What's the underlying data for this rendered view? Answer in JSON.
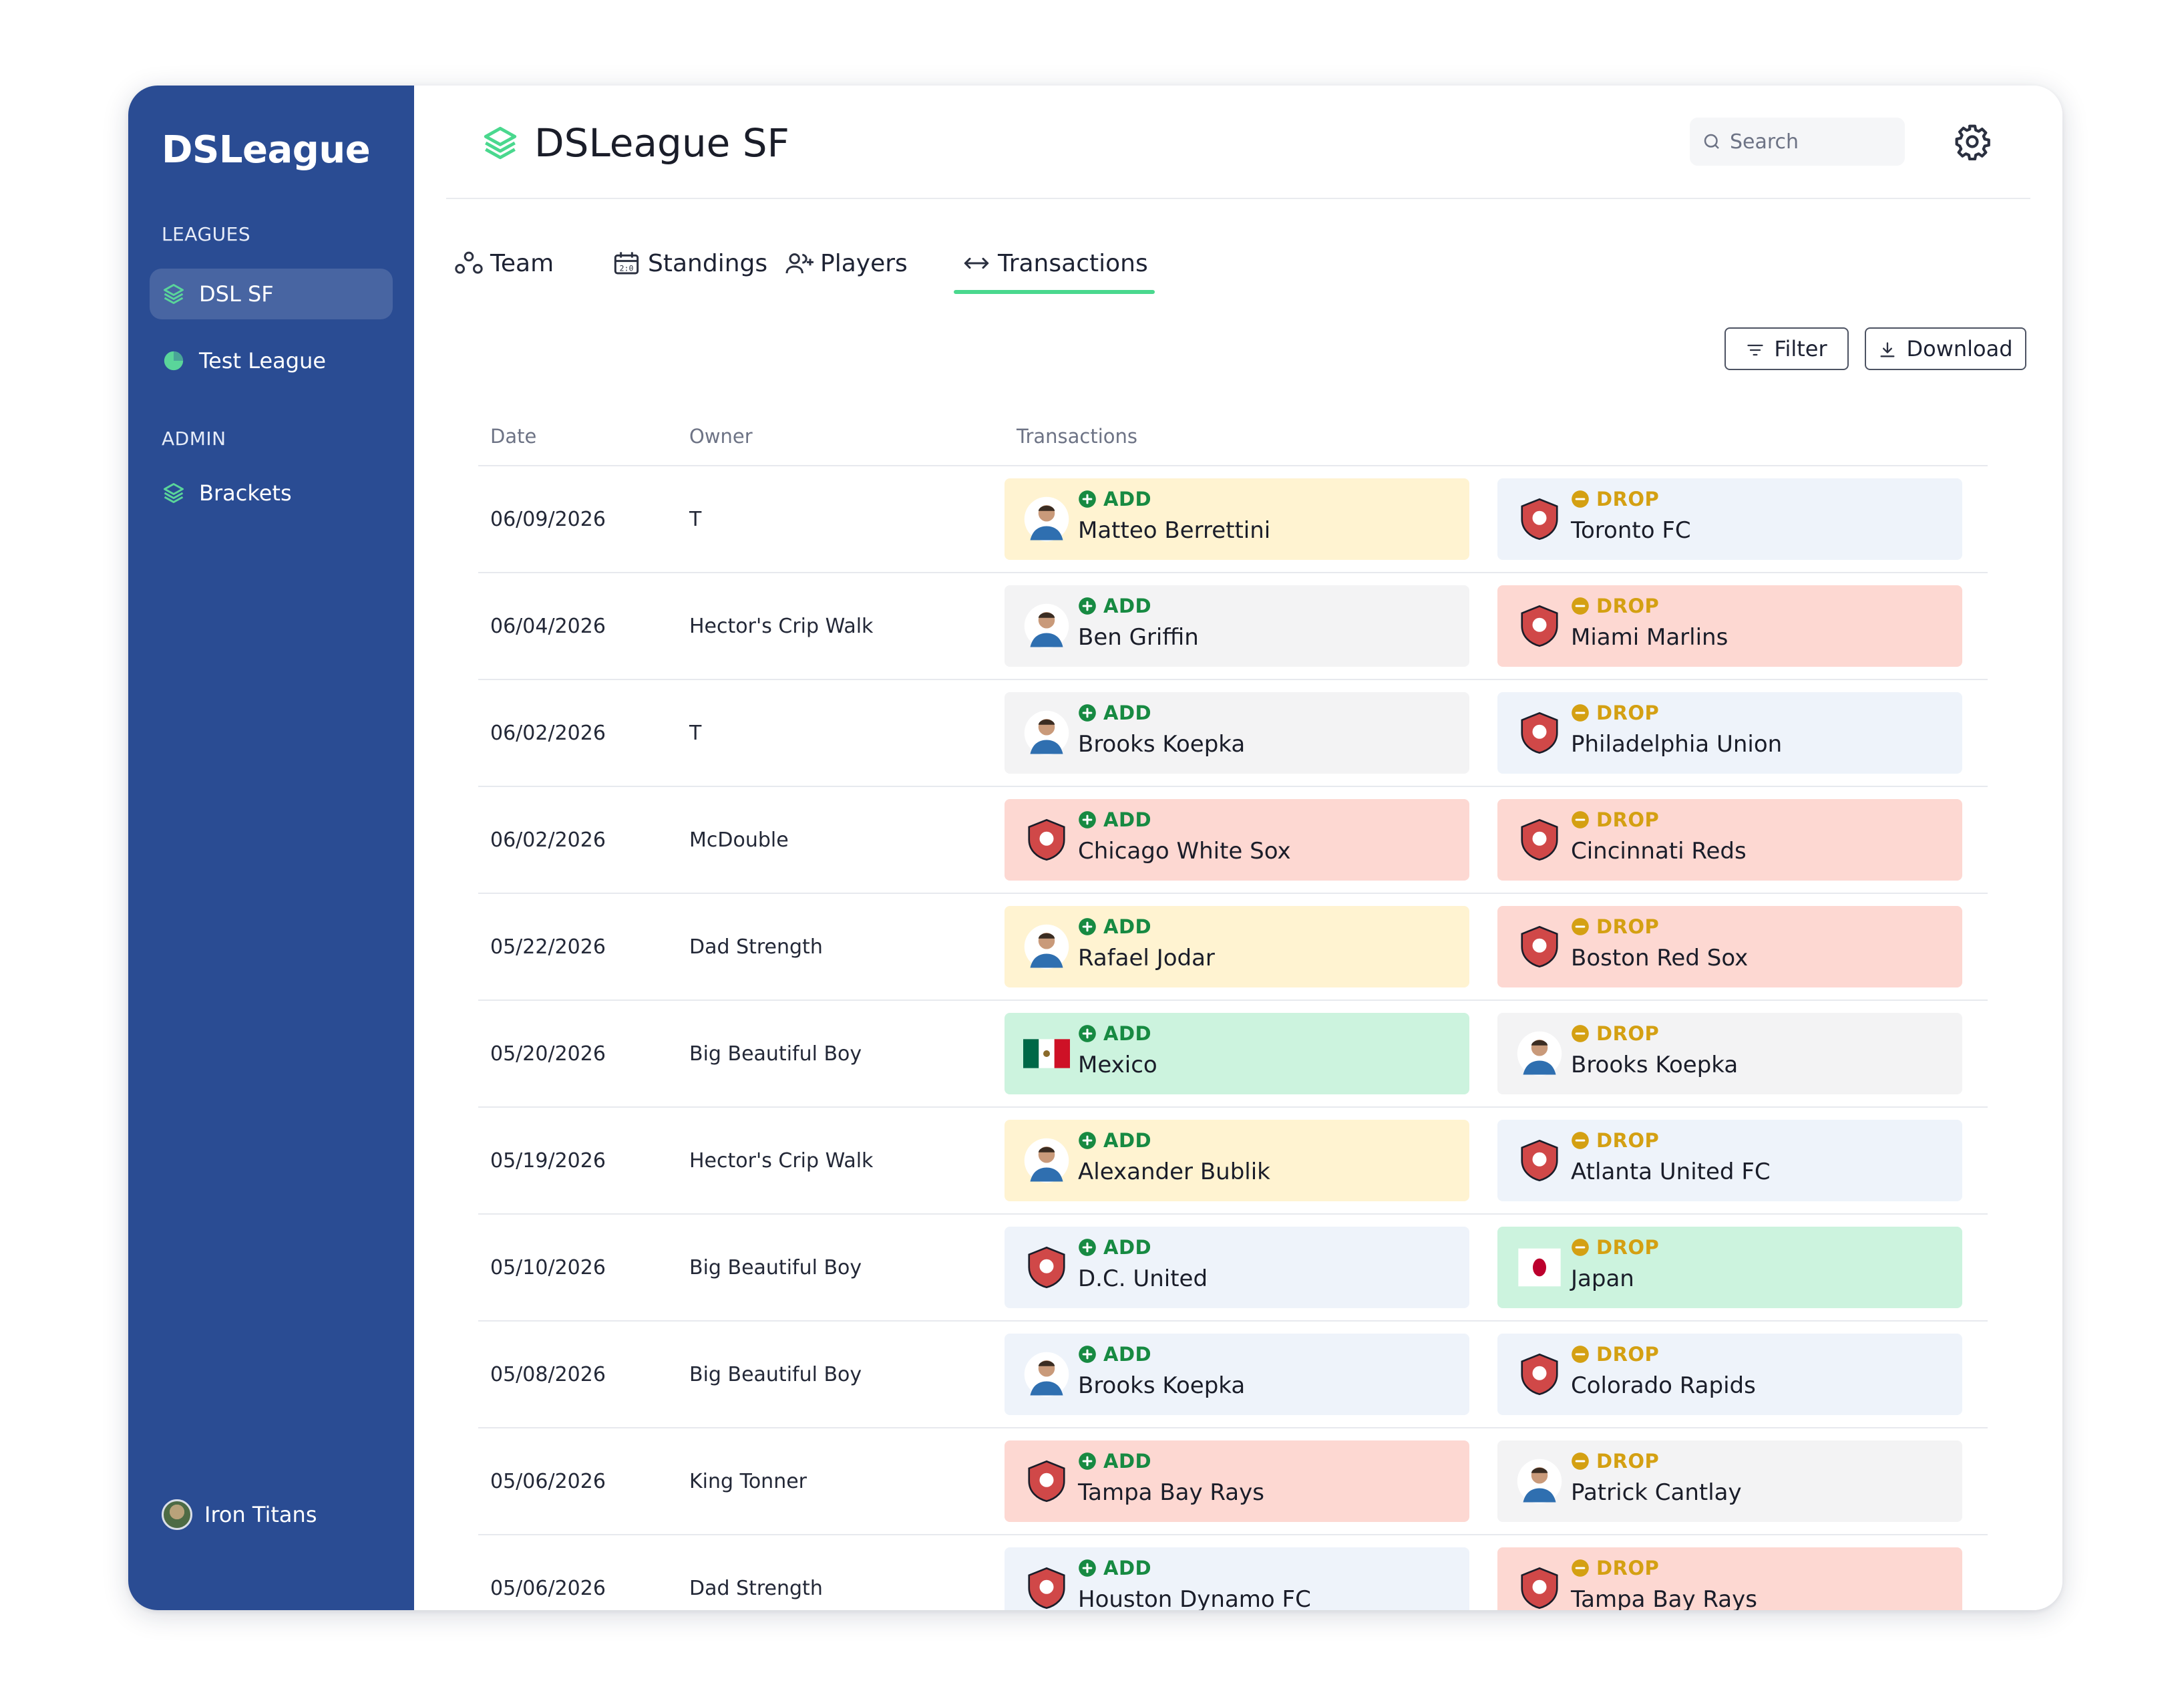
{
  "sidebar": {
    "brand": "DSLeague",
    "leagues_label": "LEAGUES",
    "leagues": [
      {
        "label": "DSL SF",
        "icon": "layers-icon",
        "active": true
      },
      {
        "label": "Test League",
        "icon": "pie-icon",
        "active": false
      }
    ],
    "admin_label": "ADMIN",
    "admin": [
      {
        "label": "Brackets",
        "icon": "layers-icon"
      }
    ],
    "user": {
      "name": "Iron Titans"
    }
  },
  "header": {
    "title": "DSLeague SF",
    "search_placeholder": "Search"
  },
  "tabs": [
    {
      "label": "Team",
      "icon": "team-icon"
    },
    {
      "label": "Standings",
      "icon": "scoreboard-icon"
    },
    {
      "label": "Players",
      "icon": "users-add-icon"
    },
    {
      "label": "Transactions",
      "icon": "arrows-left-right-icon",
      "active": true
    }
  ],
  "toolbar": {
    "filter_label": "Filter",
    "download_label": "Download"
  },
  "table": {
    "columns": [
      "Date",
      "Owner",
      "Transactions"
    ],
    "rows": [
      {
        "date": "06/09/2026",
        "owner": "T",
        "add": {
          "type": "ADD",
          "name": "Matteo Berrettini",
          "bg": "#fff3d1",
          "logo": "player-avatar"
        },
        "drop": {
          "type": "DROP",
          "name": "Toronto FC",
          "bg": "#eef3fa",
          "logo": "team-crest"
        }
      },
      {
        "date": "06/04/2026",
        "owner": "Hector's Crip Walk",
        "add": {
          "type": "ADD",
          "name": "Ben Griffin",
          "bg": "#f3f3f4",
          "logo": "player-avatar"
        },
        "drop": {
          "type": "DROP",
          "name": "Miami Marlins",
          "bg": "#fdd8d2",
          "logo": "team-crest"
        }
      },
      {
        "date": "06/02/2026",
        "owner": "T",
        "add": {
          "type": "ADD",
          "name": "Brooks Koepka",
          "bg": "#f3f3f4",
          "logo": "player-avatar"
        },
        "drop": {
          "type": "DROP",
          "name": "Philadelphia Union",
          "bg": "#eef3fa",
          "logo": "team-crest"
        }
      },
      {
        "date": "06/02/2026",
        "owner": "McDouble",
        "add": {
          "type": "ADD",
          "name": "Chicago White Sox",
          "bg": "#fdd8d2",
          "logo": "team-crest"
        },
        "drop": {
          "type": "DROP",
          "name": "Cincinnati Reds",
          "bg": "#fdd8d2",
          "logo": "team-crest"
        }
      },
      {
        "date": "05/22/2026",
        "owner": "Dad Strength",
        "add": {
          "type": "ADD",
          "name": "Rafael Jodar",
          "bg": "#fff3d1",
          "logo": "player-avatar"
        },
        "drop": {
          "type": "DROP",
          "name": "Boston Red Sox",
          "bg": "#fdd8d2",
          "logo": "team-crest"
        }
      },
      {
        "date": "05/20/2026",
        "owner": "Big Beautiful Boy",
        "add": {
          "type": "ADD",
          "name": "Mexico",
          "bg": "#ccf3de",
          "logo": "flag-mexico"
        },
        "drop": {
          "type": "DROP",
          "name": "Brooks Koepka",
          "bg": "#f3f3f4",
          "logo": "player-avatar"
        }
      },
      {
        "date": "05/19/2026",
        "owner": "Hector's Crip Walk",
        "add": {
          "type": "ADD",
          "name": "Alexander Bublik",
          "bg": "#fff3d1",
          "logo": "player-avatar"
        },
        "drop": {
          "type": "DROP",
          "name": "Atlanta United FC",
          "bg": "#eef3fa",
          "logo": "team-crest"
        }
      },
      {
        "date": "05/10/2026",
        "owner": "Big Beautiful Boy",
        "add": {
          "type": "ADD",
          "name": "D.C. United",
          "bg": "#eef3fa",
          "logo": "team-crest"
        },
        "drop": {
          "type": "DROP",
          "name": "Japan",
          "bg": "#ccf3de",
          "logo": "flag-japan"
        }
      },
      {
        "date": "05/08/2026",
        "owner": "Big Beautiful Boy",
        "add": {
          "type": "ADD",
          "name": "Brooks Koepka",
          "bg": "#eef3fa",
          "logo": "player-avatar"
        },
        "drop": {
          "type": "DROP",
          "name": "Colorado Rapids",
          "bg": "#eef3fa",
          "logo": "team-crest"
        }
      },
      {
        "date": "05/06/2026",
        "owner": "King Tonner",
        "add": {
          "type": "ADD",
          "name": "Tampa Bay Rays",
          "bg": "#fdd8d2",
          "logo": "team-crest"
        },
        "drop": {
          "type": "DROP",
          "name": "Patrick Cantlay",
          "bg": "#f3f3f4",
          "logo": "player-avatar"
        }
      },
      {
        "date": "05/06/2026",
        "owner": "Dad Strength",
        "add": {
          "type": "ADD",
          "name": "Houston Dynamo FC",
          "bg": "#eef3fa",
          "logo": "team-crest"
        },
        "drop": {
          "type": "DROP",
          "name": "Tampa Bay Rays",
          "bg": "#fdd8d2",
          "logo": "team-crest"
        }
      }
    ]
  },
  "colors": {
    "sidebar": "#2a4c93",
    "accent": "#4ad88e",
    "add": "#178a42",
    "drop": "#d4a012"
  }
}
